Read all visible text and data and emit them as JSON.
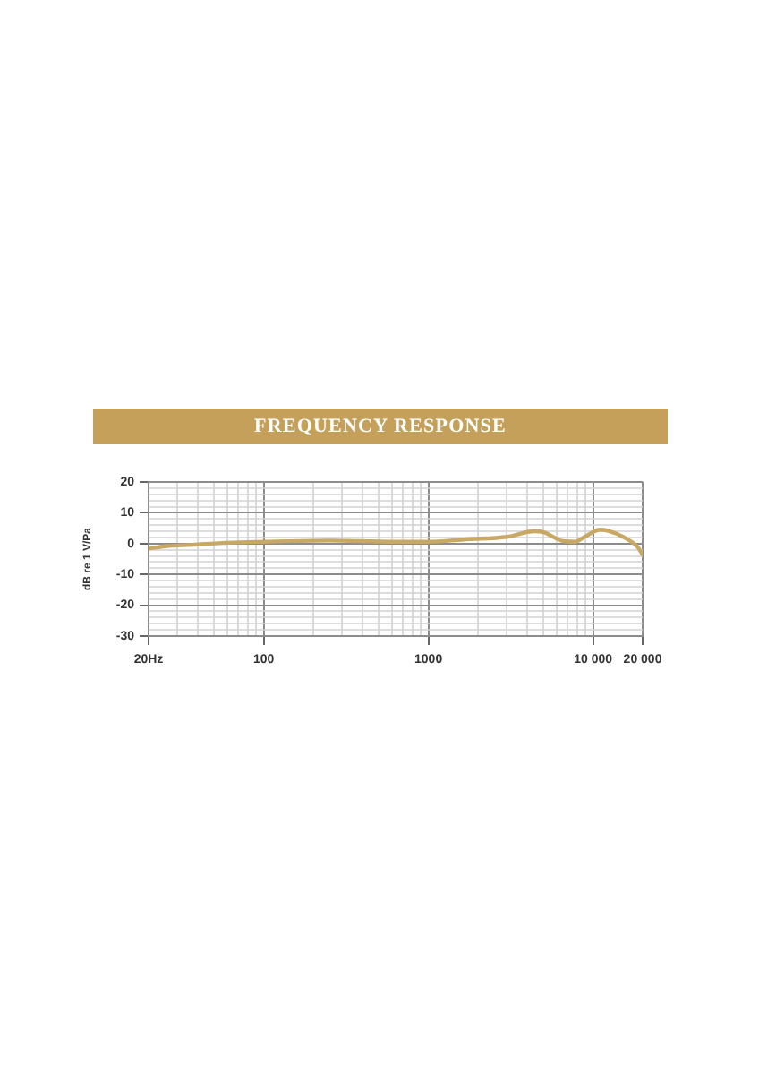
{
  "chart_data": {
    "type": "line",
    "title": "FREQUENCY RESPONSE",
    "ylabel": "dB re 1 V/Pa",
    "x": [
      20,
      26,
      37,
      56,
      100,
      250,
      380,
      630,
      1000,
      1700,
      3000,
      4400,
      5000,
      6600,
      7800,
      8900,
      11000,
      12400,
      15200,
      18700,
      20000
    ],
    "values": [
      -1.6,
      -0.8,
      -0.4,
      0.2,
      0.6,
      1,
      0.8,
      0.6,
      0.6,
      1.4,
      2.2,
      4,
      3.7,
      0.8,
      0.6,
      2.2,
      4.5,
      4.1,
      2.2,
      -1.2,
      -3.7
    ],
    "color": "#c8a863",
    "log": "x",
    "xlim": [
      20,
      20000
    ],
    "xticks": [
      {
        "value": 20,
        "label": "20Hz"
      },
      {
        "value": 30,
        "label": null
      },
      {
        "value": 40,
        "label": null
      },
      {
        "value": 50,
        "label": null
      },
      {
        "value": 60,
        "label": null
      },
      {
        "value": 70,
        "label": null
      },
      {
        "value": 80,
        "label": null
      },
      {
        "value": 90,
        "label": null
      },
      100,
      {
        "value": 200,
        "label": null
      },
      {
        "value": 300,
        "label": null
      },
      {
        "value": 400,
        "label": null
      },
      {
        "value": 500,
        "label": null
      },
      {
        "value": 600,
        "label": null
      },
      {
        "value": 700,
        "label": null
      },
      {
        "value": 800,
        "label": null
      },
      {
        "value": 900,
        "label": null
      },
      1000,
      {
        "value": 2000,
        "label": null
      },
      {
        "value": 3000,
        "label": null
      },
      {
        "value": 4000,
        "label": null
      },
      {
        "value": 5000,
        "label": null
      },
      {
        "value": 6000,
        "label": null
      },
      {
        "value": 7000,
        "label": null
      },
      {
        "value": 8000,
        "label": null
      },
      {
        "value": 9000,
        "label": null
      },
      {
        "value": 10000,
        "label": "10 000"
      },
      {
        "value": 20000,
        "label": "20 000"
      }
    ],
    "ylim": [
      -30,
      20
    ],
    "yticks": [
      -30,
      {
        "value": -28,
        "label": null
      },
      {
        "value": -26,
        "label": null
      },
      {
        "value": -24,
        "label": null
      },
      {
        "value": -22,
        "label": null
      },
      -20,
      {
        "value": -18,
        "label": null
      },
      {
        "value": -16,
        "label": null
      },
      {
        "value": -14,
        "label": null
      },
      {
        "value": -12,
        "label": null
      },
      -10,
      {
        "value": -8,
        "label": null
      },
      {
        "value": -6,
        "label": null
      },
      {
        "value": -4,
        "label": null
      },
      {
        "value": -2,
        "label": null
      },
      0,
      {
        "value": 2,
        "label": null
      },
      {
        "value": 4,
        "label": null
      },
      {
        "value": 6,
        "label": null
      },
      {
        "value": 8,
        "label": null
      },
      10,
      {
        "value": 12,
        "label": null
      },
      {
        "value": 14,
        "label": null
      },
      {
        "value": 16,
        "label": null
      },
      {
        "value": 18,
        "label": null
      },
      20
    ],
    "grid": true,
    "legend": false,
    "marker": "none"
  }
}
